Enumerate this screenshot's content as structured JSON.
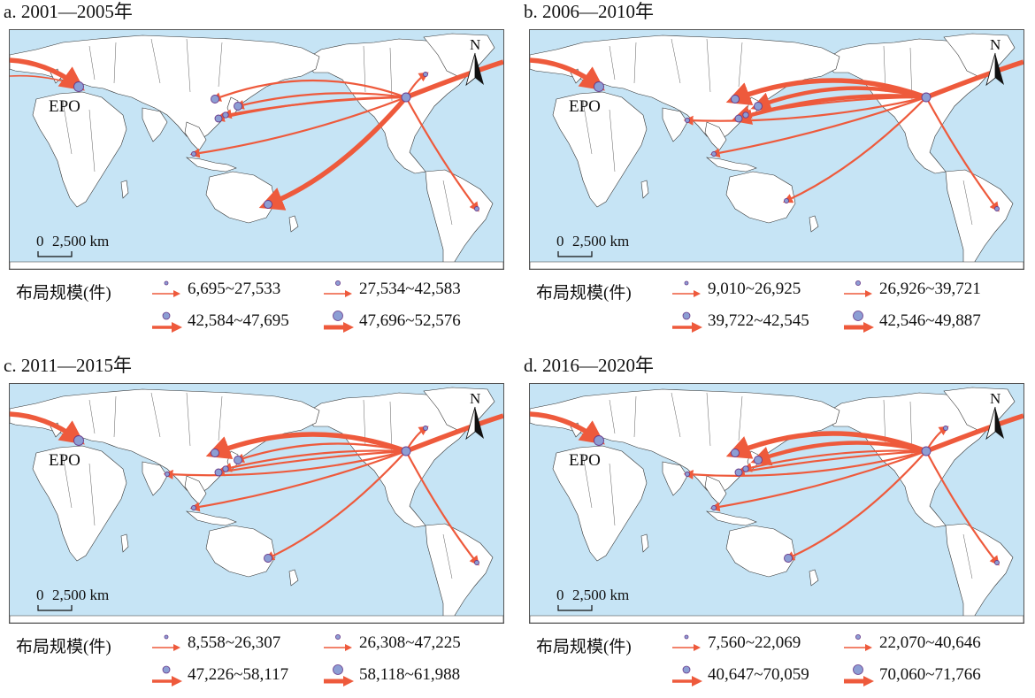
{
  "legend_title": "布局规模(件)",
  "office_label": "EPO",
  "north_label": "N",
  "scale": {
    "zero": "0",
    "text": "2,500 km"
  },
  "colors": {
    "ocean": "#c6e4f5",
    "land": "#ffffff",
    "border": "#333333",
    "flow": "#ee5a3c",
    "node_fill": "#8c9ed4",
    "node_stroke": "#6a3a8a"
  },
  "panels": [
    {
      "id": "a",
      "title": "a. 2001—2005年",
      "legend": [
        "6,695~27,533",
        "27,534~42,583",
        "42,584~47,695",
        "47,696~52,576"
      ]
    },
    {
      "id": "b",
      "title": "b. 2006—2010年",
      "legend": [
        "9,010~26,925",
        "26,926~39,721",
        "39,722~42,545",
        "42,546~49,887"
      ]
    },
    {
      "id": "c",
      "title": "c. 2011—2015年",
      "legend": [
        "8,558~26,307",
        "26,308~47,225",
        "47,226~58,117",
        "58,118~61,988"
      ]
    },
    {
      "id": "d",
      "title": "d. 2016—2020年",
      "legend": [
        "7,560~22,069",
        "22,070~40,646",
        "40,647~70,059",
        "70,060~71,766"
      ]
    }
  ]
}
